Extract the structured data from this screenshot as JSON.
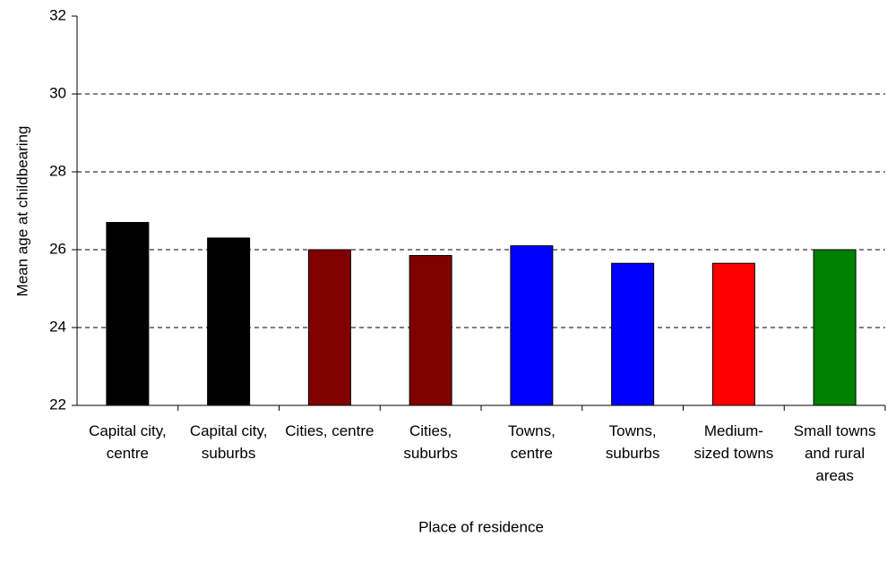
{
  "chart_data": {
    "type": "bar",
    "x_label": "Place of residence",
    "y_label": "Mean age at childbearing",
    "categories": [
      "Capital city, centre",
      "Capital city, suburbs",
      "Cities, centre",
      "Cities, suburbs",
      "Towns, centre",
      "Towns, suburbs",
      "Medium-sized towns",
      "Small towns and rural areas"
    ],
    "values": [
      26.7,
      26.3,
      26.0,
      25.85,
      26.1,
      25.65,
      25.65,
      26.0
    ],
    "colors": [
      "#000000",
      "#000000",
      "#800000",
      "#800000",
      "#0000ff",
      "#0000ff",
      "#ff0000",
      "#008000"
    ],
    "ylim": [
      22,
      32
    ],
    "yticks": [
      22,
      24,
      26,
      28,
      30,
      32
    ],
    "grid": true
  }
}
